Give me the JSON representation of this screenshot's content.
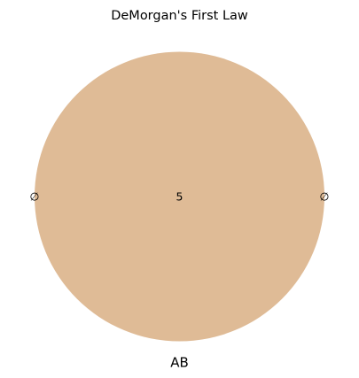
{
  "title": "DeMorgan's First Law",
  "diagram": {
    "circle_color": "#dfbb96",
    "set_label": "AB",
    "center_value": "5",
    "left_symbol": "∅",
    "right_symbol": "∅"
  }
}
